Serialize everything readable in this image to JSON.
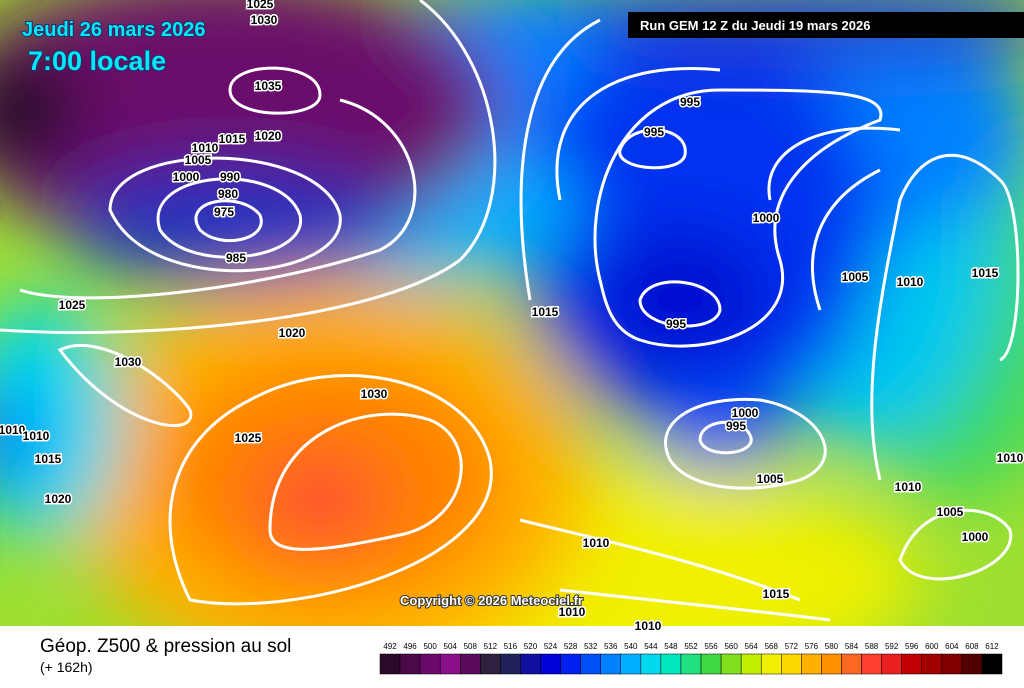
{
  "header": {
    "date": "Jeudi 26 mars 2026",
    "time": "7:00 locale",
    "run": "Run GEM 12 Z du Jeudi 19 mars 2026"
  },
  "copyright": "Copyright © 2026 Meteociel.fr",
  "footer": {
    "title": "Géop. Z500 & pression au sol",
    "lead": "(+ 162h)"
  },
  "isobar_labels": [
    "1025",
    "1030",
    "1035",
    "1015",
    "1010",
    "1020",
    "1005",
    "1000",
    "990",
    "980",
    "975",
    "985",
    "1025",
    "1020",
    "1030",
    "1010",
    "1010",
    "1015",
    "1020",
    "1030",
    "1025",
    "995",
    "995",
    "1000",
    "995",
    "1015",
    "1005",
    "1010",
    "1015",
    "1000",
    "995",
    "1005",
    "1010",
    "1005",
    "1000",
    "1010",
    "1010",
    "1010",
    "1015",
    "1010"
  ],
  "scale": {
    "labels": [
      492,
      496,
      500,
      504,
      508,
      512,
      516,
      520,
      524,
      528,
      532,
      536,
      540,
      544,
      548,
      552,
      556,
      560,
      564,
      568,
      572,
      576,
      580,
      584,
      588,
      592,
      596,
      600,
      604,
      608,
      612
    ],
    "colors": [
      "#2a0a2a",
      "#4a0a4a",
      "#6a0a6a",
      "#8a108a",
      "#5a0a5a",
      "#302040",
      "#20205a",
      "#1010a0",
      "#0000d8",
      "#0020f0",
      "#0050f8",
      "#0080ff",
      "#00b0ff",
      "#00d8f0",
      "#00e8c0",
      "#20e080",
      "#40d840",
      "#80e020",
      "#c0f000",
      "#f0f000",
      "#ffd800",
      "#ffb000",
      "#ff9000",
      "#ff6820",
      "#ff4030",
      "#e82020",
      "#c00000",
      "#a00000",
      "#800000",
      "#500000",
      "#000000"
    ]
  }
}
